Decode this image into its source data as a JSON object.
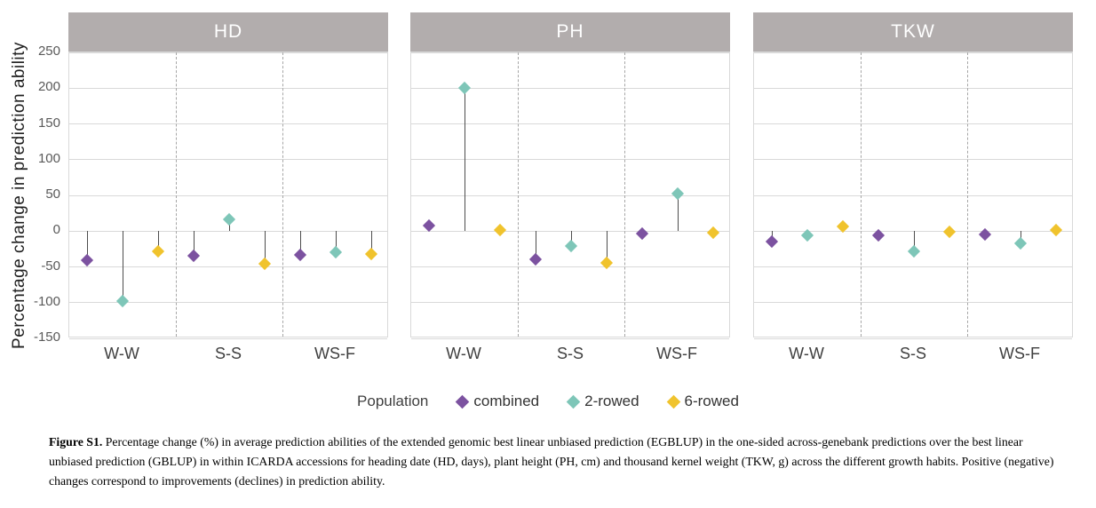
{
  "figure": {
    "y_axis_title": "Percentage change in prediction ability",
    "legend": {
      "title": "Population",
      "items": [
        {
          "label": "combined"
        },
        {
          "label": "2-rowed"
        },
        {
          "label": "6-rowed"
        }
      ]
    },
    "caption_bold": "Figure S1.",
    "caption_text": " Percentage change (%) in average prediction abilities of the extended genomic best linear unbiased prediction (EGBLUP) in the one-sided across-genebank predictions over the best linear unbiased prediction (GBLUP) in within ICARDA accessions for heading date (HD, days), plant height (PH, cm) and thousand kernel weight (TKW, g) across the different growth habits. Positive (negative) changes correspond to improvements (declines) in prediction ability."
  },
  "chart_data": {
    "type": "scatter",
    "subtype": "lollipop-diamond",
    "title": "",
    "xlabel": "",
    "ylabel": "Percentage change in prediction ability",
    "ylim": [
      -150,
      250
    ],
    "y_ticks": [
      250,
      200,
      150,
      100,
      50,
      0,
      -50,
      -100,
      -150
    ],
    "grid": "horizontal-solid, category-separators-dashed",
    "legend_position": "bottom-center",
    "categories": [
      "W-W",
      "S-S",
      "WS-F"
    ],
    "series_colors": {
      "combined": "#7C52A0",
      "2-rowed": "#7EC6B8",
      "6-rowed": "#F0C32D"
    },
    "baseline": 0,
    "panels": [
      {
        "title": "HD",
        "series": [
          {
            "name": "combined",
            "color": "#7C52A0",
            "values": [
              -41,
              -35,
              -33
            ]
          },
          {
            "name": "2-rowed",
            "color": "#7EC6B8",
            "values": [
              -98,
              17,
              -29
            ]
          },
          {
            "name": "6-rowed",
            "color": "#F0C32D",
            "values": [
              -28,
              -46,
              -32
            ]
          }
        ]
      },
      {
        "title": "PH",
        "series": [
          {
            "name": "combined",
            "color": "#7C52A0",
            "values": [
              8,
              -39,
              -4
            ]
          },
          {
            "name": "2-rowed",
            "color": "#7EC6B8",
            "values": [
              200,
              -21,
              52
            ]
          },
          {
            "name": "6-rowed",
            "color": "#F0C32D",
            "values": [
              1,
              -44,
              -2
            ]
          }
        ]
      },
      {
        "title": "TKW",
        "series": [
          {
            "name": "combined",
            "color": "#7C52A0",
            "values": [
              -15,
              -6,
              -5
            ]
          },
          {
            "name": "2-rowed",
            "color": "#7EC6B8",
            "values": [
              -6,
              -28,
              -17
            ]
          },
          {
            "name": "6-rowed",
            "color": "#F0C32D",
            "values": [
              6,
              -1,
              2
            ]
          }
        ]
      }
    ]
  }
}
